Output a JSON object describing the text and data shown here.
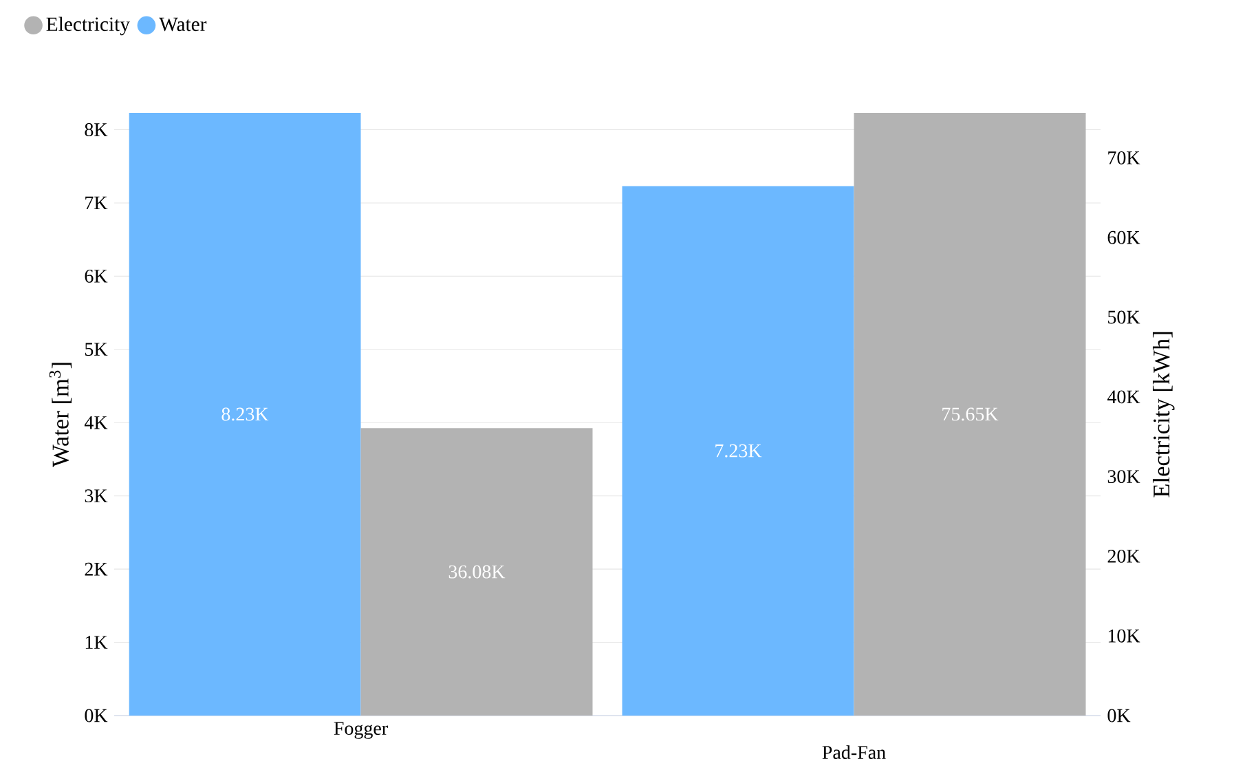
{
  "chart_data": {
    "type": "bar",
    "categories": [
      "Fogger",
      "Pad-Fan"
    ],
    "ylabel": "Water [m$^{3}$]",
    "y2label": "Electricity [kWh]",
    "series": [
      {
        "name": "Water",
        "color": "#6cb8ff",
        "values": [
          8230,
          7230
        ],
        "value_labels": [
          "8.23K",
          "7.23K"
        ]
      },
      {
        "name": "Electricity",
        "color": "#b3b3b3",
        "values": [
          36080,
          75650
        ],
        "value_labels": [
          "36.08K",
          "75.65K"
        ],
        "axis": "y2"
      }
    ],
    "ylim": [
      0,
      8230
    ],
    "yticks": [
      {
        "value": 0,
        "label": "0K"
      },
      {
        "value": 1000,
        "label": "1K"
      },
      {
        "value": 2000,
        "label": "2K"
      },
      {
        "value": 3000,
        "label": "3K"
      },
      {
        "value": 4000,
        "label": "4K"
      },
      {
        "value": 5000,
        "label": "5K"
      },
      {
        "value": 6000,
        "label": "6K"
      },
      {
        "value": 7000,
        "label": "7K"
      },
      {
        "value": 8000,
        "label": "8K"
      }
    ],
    "y2lim": [
      0,
      75650
    ],
    "y2ticks": [
      {
        "value": 0,
        "label": "0K"
      },
      {
        "value": 10000,
        "label": "10K"
      },
      {
        "value": 20000,
        "label": "20K"
      },
      {
        "value": 30000,
        "label": "30K"
      },
      {
        "value": 40000,
        "label": "40K"
      },
      {
        "value": 50000,
        "label": "50K"
      },
      {
        "value": 60000,
        "label": "60K"
      },
      {
        "value": 70000,
        "label": "70K"
      }
    ],
    "grid": "y",
    "legend": "top left"
  }
}
